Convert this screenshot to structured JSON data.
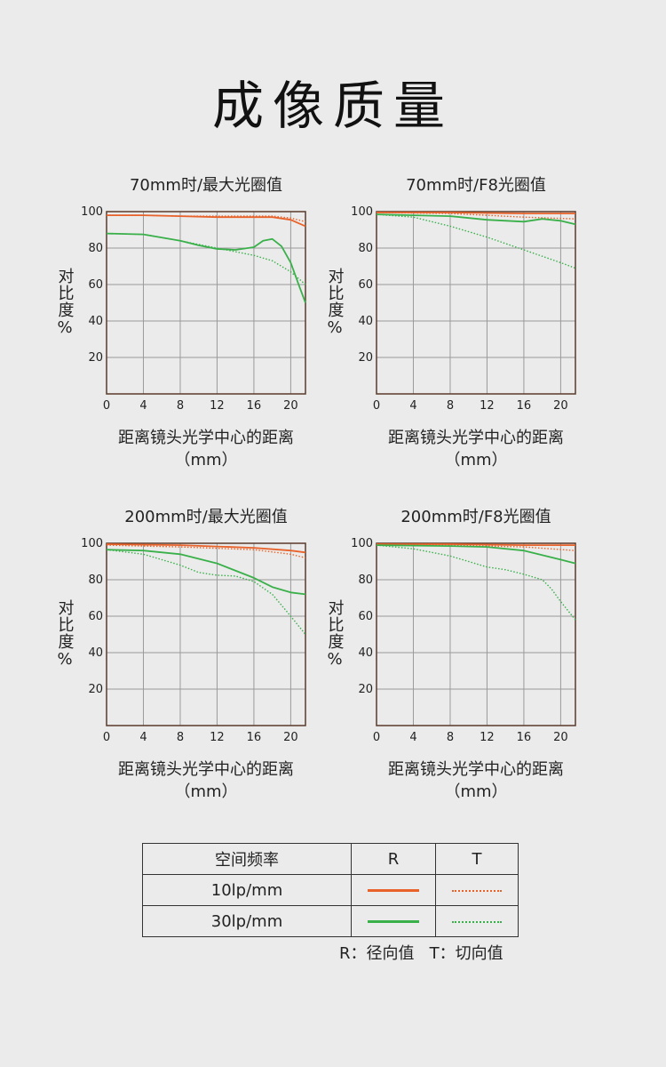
{
  "page_title": "成像质量",
  "colors": {
    "grid": "#9a9a9a",
    "frame": "#5a3a2a",
    "orange": "#e8622a",
    "green": "#3ab04a"
  },
  "chart_common": {
    "y_axis_label": "对比度%",
    "x_axis_label_line1": "距离镜头光学中心的距离",
    "x_axis_label_line2": "（mm）",
    "x_ticks": [
      "0",
      "4",
      "8",
      "12",
      "16",
      "20"
    ],
    "y_ticks": [
      "100",
      "80",
      "60",
      "40",
      "20"
    ]
  },
  "chart_data": [
    {
      "type": "line",
      "title": "70mm时/最大光圈值",
      "xlim": [
        0,
        21.6
      ],
      "ylim": [
        0,
        100
      ],
      "series": [
        {
          "name": "10lp/mm R",
          "color": "orange",
          "style": "solid",
          "x": [
            0,
            4,
            8,
            12,
            16,
            18,
            20,
            21.6
          ],
          "y": [
            98,
            98,
            97.5,
            97,
            97,
            97,
            95.5,
            92
          ]
        },
        {
          "name": "10lp/mm T",
          "color": "orange",
          "style": "dotted",
          "x": [
            0,
            4,
            8,
            12,
            16,
            18,
            20,
            21.6
          ],
          "y": [
            98,
            98,
            97.5,
            97.5,
            97.5,
            97.5,
            96.5,
            94.5
          ]
        },
        {
          "name": "30lp/mm R",
          "color": "green",
          "style": "solid",
          "x": [
            0,
            4,
            8,
            10,
            12,
            14,
            16,
            17,
            18,
            19,
            20,
            21,
            21.6
          ],
          "y": [
            88,
            87.5,
            84,
            81.5,
            79.5,
            79,
            80.5,
            84,
            85,
            81,
            72,
            58,
            50
          ]
        },
        {
          "name": "30lp/mm T",
          "color": "green",
          "style": "dotted",
          "x": [
            0,
            4,
            8,
            12,
            16,
            18,
            20,
            21.6
          ],
          "y": [
            88,
            87.5,
            84,
            80,
            76,
            73,
            67,
            60
          ]
        }
      ]
    },
    {
      "type": "line",
      "title": "70mm时/F8光圈值",
      "xlim": [
        0,
        21.6
      ],
      "ylim": [
        0,
        100
      ],
      "series": [
        {
          "name": "10lp/mm R",
          "color": "orange",
          "style": "solid",
          "x": [
            0,
            8,
            16,
            21.6
          ],
          "y": [
            99.5,
            99.5,
            99,
            99
          ]
        },
        {
          "name": "10lp/mm T",
          "color": "orange",
          "style": "dotted",
          "x": [
            0,
            8,
            16,
            21.6
          ],
          "y": [
            99.5,
            99,
            97,
            96
          ]
        },
        {
          "name": "30lp/mm R",
          "color": "green",
          "style": "solid",
          "x": [
            0,
            4,
            8,
            12,
            16,
            18,
            20,
            21.6
          ],
          "y": [
            98.5,
            98,
            97.5,
            95.5,
            94.5,
            96,
            95,
            93
          ]
        },
        {
          "name": "30lp/mm T",
          "color": "green",
          "style": "dotted",
          "x": [
            0,
            4,
            8,
            12,
            16,
            20,
            21.6
          ],
          "y": [
            98.5,
            97,
            92,
            86,
            79,
            72,
            69
          ]
        }
      ]
    },
    {
      "type": "line",
      "title": "200mm时/最大光圈值",
      "xlim": [
        0,
        21.6
      ],
      "ylim": [
        0,
        100
      ],
      "series": [
        {
          "name": "10lp/mm R",
          "color": "orange",
          "style": "solid",
          "x": [
            0,
            8,
            16,
            20,
            21.6
          ],
          "y": [
            99.5,
            99,
            97.5,
            96,
            95
          ]
        },
        {
          "name": "10lp/mm T",
          "color": "orange",
          "style": "dotted",
          "x": [
            0,
            8,
            16,
            20,
            21.6
          ],
          "y": [
            99,
            98,
            96.5,
            94,
            92
          ]
        },
        {
          "name": "30lp/mm R",
          "color": "green",
          "style": "solid",
          "x": [
            0,
            4,
            8,
            12,
            16,
            18,
            20,
            21.6
          ],
          "y": [
            96.5,
            96,
            94,
            89,
            81,
            76,
            73,
            72
          ]
        },
        {
          "name": "30lp/mm T",
          "color": "green",
          "style": "dotted",
          "x": [
            0,
            4,
            8,
            10,
            12,
            14,
            16,
            18,
            20,
            21.6
          ],
          "y": [
            96.5,
            94,
            88,
            84,
            82.5,
            82,
            79,
            72,
            60,
            50
          ]
        }
      ]
    },
    {
      "type": "line",
      "title": "200mm时/F8光圈值",
      "xlim": [
        0,
        21.6
      ],
      "ylim": [
        0,
        100
      ],
      "series": [
        {
          "name": "10lp/mm R",
          "color": "orange",
          "style": "solid",
          "x": [
            0,
            8,
            16,
            21.6
          ],
          "y": [
            99.5,
            99.5,
            99,
            99
          ]
        },
        {
          "name": "10lp/mm T",
          "color": "orange",
          "style": "dotted",
          "x": [
            0,
            8,
            16,
            21.6
          ],
          "y": [
            99.5,
            99,
            98,
            96
          ]
        },
        {
          "name": "30lp/mm R",
          "color": "green",
          "style": "solid",
          "x": [
            0,
            8,
            12,
            16,
            20,
            21.6
          ],
          "y": [
            99,
            98.5,
            98,
            96,
            91,
            89
          ]
        },
        {
          "name": "30lp/mm T",
          "color": "green",
          "style": "dotted",
          "x": [
            0,
            4,
            8,
            12,
            14,
            16,
            18,
            19,
            20,
            21.6
          ],
          "y": [
            99,
            97,
            93,
            87,
            85.5,
            83,
            80,
            75,
            68,
            58
          ]
        }
      ]
    }
  ],
  "legend": {
    "header": [
      "空间频率",
      "R",
      "T"
    ],
    "rows": [
      {
        "label": "10lp/mm",
        "color": "orange"
      },
      {
        "label": "30lp/mm",
        "color": "green"
      }
    ],
    "note": "R：径向值   T：切向值"
  }
}
